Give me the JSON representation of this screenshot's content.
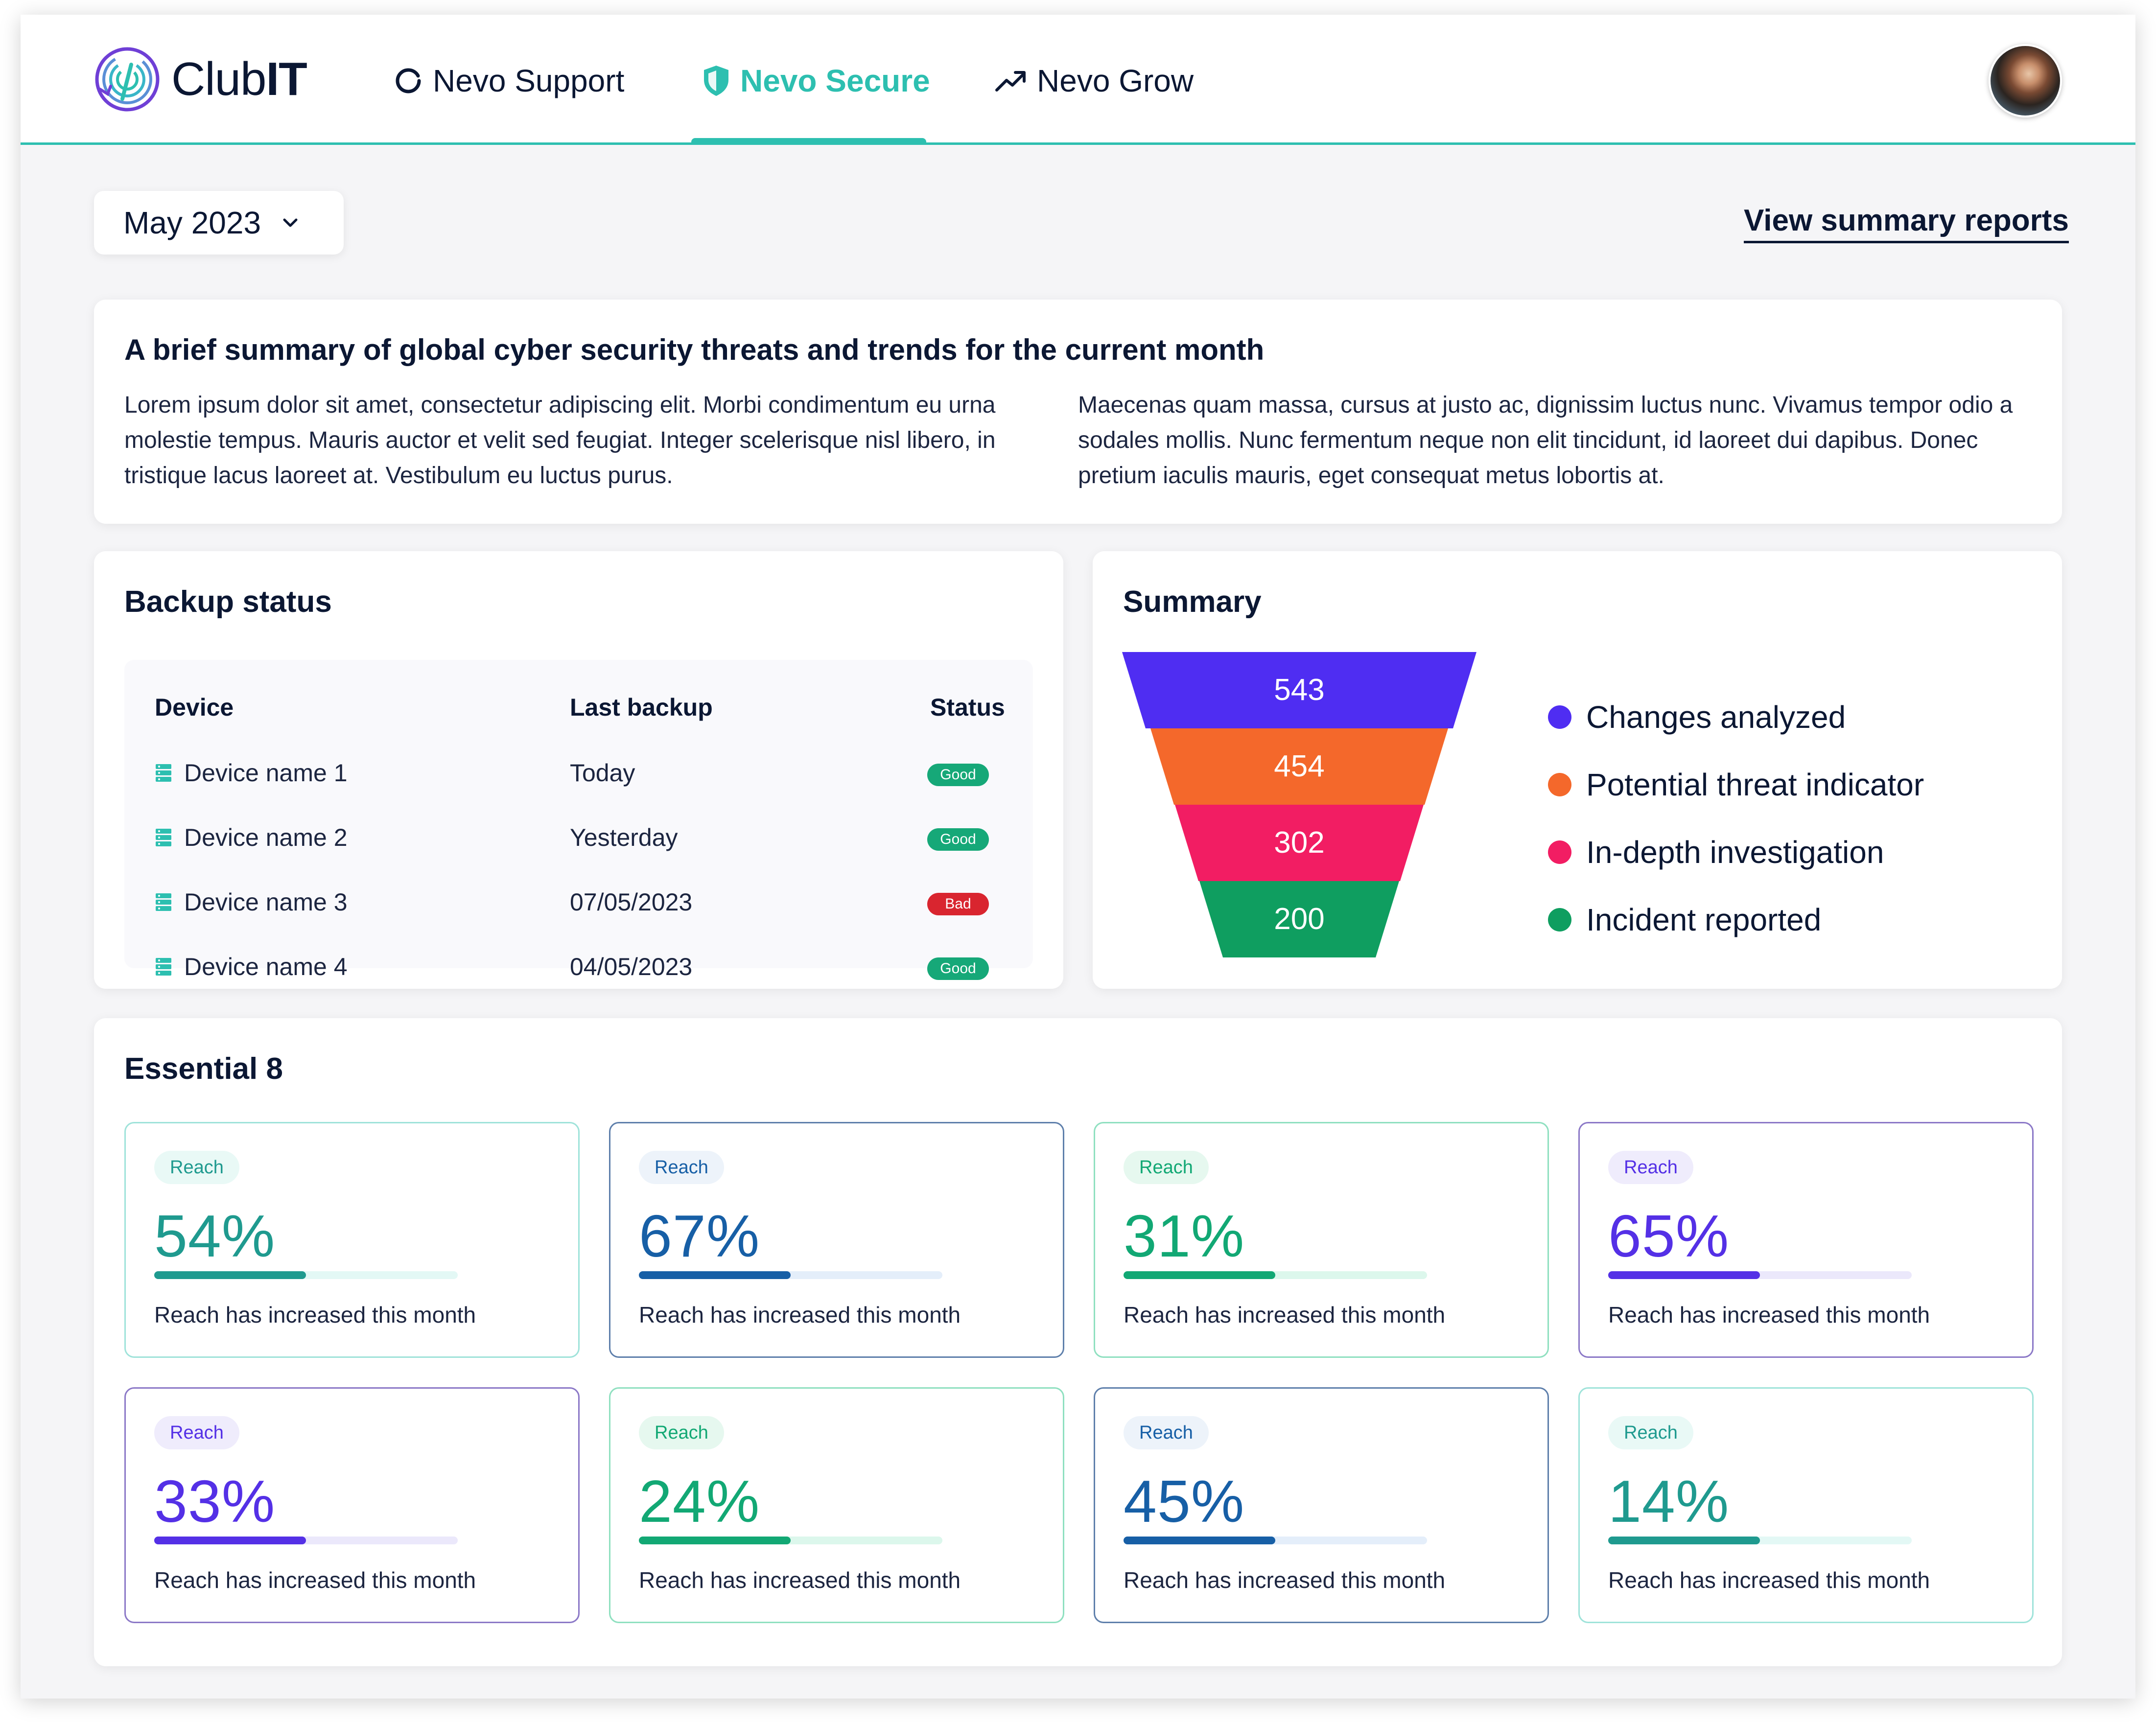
{
  "app": {
    "logo_prefix": "Club",
    "logo_suffix": "IT",
    "nav": [
      {
        "label": "Nevo Support",
        "icon": "refresh-icon"
      },
      {
        "label": "Nevo Secure",
        "icon": "shield-icon"
      },
      {
        "label": "Nevo Grow",
        "icon": "trending-up-icon"
      }
    ],
    "active_nav": "Nevo Secure",
    "accent_color": "#2dbfb0"
  },
  "toolbar": {
    "month_value": "May 2023",
    "summary_link": "View summary reports"
  },
  "intro": {
    "title": "A brief summary of global cyber security threats and trends for the current month",
    "para1": "Lorem ipsum dolor sit amet, consectetur adipiscing elit. Morbi condimentum eu urna molestie tempus. Mauris auctor et velit sed feugiat. Integer scelerisque nisl libero, in tristique lacus laoreet at. Vestibulum eu luctus purus.",
    "para2": "Maecenas quam massa, cursus at justo ac, dignissim luctus nunc. Vivamus tempor odio a sodales mollis. Nunc fermentum neque non elit tincidunt, id laoreet dui dapibus. Donec pretium iaculis mauris, eget consequat metus lobortis at."
  },
  "backup": {
    "title": "Backup status",
    "headers": {
      "device": "Device",
      "last_backup": "Last backup",
      "status": "Status"
    },
    "rows": [
      {
        "device": "Device name 1",
        "last_backup": "Today",
        "status": "Good",
        "status_color": "#16a878"
      },
      {
        "device": "Device name 2",
        "last_backup": "Yesterday",
        "status": "Good",
        "status_color": "#16a878"
      },
      {
        "device": "Device name 3",
        "last_backup": "07/05/2023",
        "status": "Bad",
        "status_color": "#d9252f"
      },
      {
        "device": "Device name 4",
        "last_backup": "04/05/2023",
        "status": "Good",
        "status_color": "#16a878"
      }
    ]
  },
  "summary": {
    "title": "Summary",
    "stages": [
      {
        "label": "Changes analyzed",
        "value": "543",
        "color": "#4f2df2"
      },
      {
        "label": "Potential threat indicator",
        "value": "454",
        "color": "#f4682b"
      },
      {
        "label": "In-depth investigation",
        "value": "302",
        "color": "#f21d63"
      },
      {
        "label": "Incident reported",
        "value": "200",
        "color": "#0f9e60"
      }
    ]
  },
  "essential": {
    "title": "Essential 8",
    "cards": [
      {
        "pill": "Reach",
        "value": "54%",
        "progress": 0.5,
        "text": "Reach has increased this month",
        "color": "#1f9a8f",
        "pill_bg": "#e9f9f6",
        "track": "#e3f8f5",
        "border": "#9fe3da"
      },
      {
        "pill": "Reach",
        "value": "67%",
        "progress": 0.5,
        "text": "Reach has increased this month",
        "color": "#175fa6",
        "pill_bg": "#edf3fa",
        "track": "#e4eefa",
        "border": "#5e7fab"
      },
      {
        "pill": "Reach",
        "value": "31%",
        "progress": 0.5,
        "text": "Reach has increased this month",
        "color": "#12a874",
        "pill_bg": "#e6f8ef",
        "track": "#dcf7ec",
        "border": "#8fe0c0"
      },
      {
        "pill": "Reach",
        "value": "65%",
        "progress": 0.5,
        "text": "Reach has increased this month",
        "color": "#5430e6",
        "pill_bg": "#efecfc",
        "track": "#ebe8fb",
        "border": "#8b78c7"
      },
      {
        "pill": "Reach",
        "value": "33%",
        "progress": 0.5,
        "text": "Reach has increased this month",
        "color": "#5430e6",
        "pill_bg": "#efecfc",
        "track": "#ebe8fb",
        "border": "#8b78c7"
      },
      {
        "pill": "Reach",
        "value": "24%",
        "progress": 0.5,
        "text": "Reach has increased this month",
        "color": "#12a874",
        "pill_bg": "#e6f8ef",
        "track": "#dcf7ec",
        "border": "#8fe0c0"
      },
      {
        "pill": "Reach",
        "value": "45%",
        "progress": 0.5,
        "text": "Reach has increased this month",
        "color": "#175fa6",
        "pill_bg": "#edf3fa",
        "track": "#e4eefa",
        "border": "#5e7fab"
      },
      {
        "pill": "Reach",
        "value": "14%",
        "progress": 0.5,
        "text": "Reach has increased this month",
        "color": "#1f9a8f",
        "pill_bg": "#e9f9f6",
        "track": "#e3f8f5",
        "border": "#9fe3da"
      }
    ]
  }
}
